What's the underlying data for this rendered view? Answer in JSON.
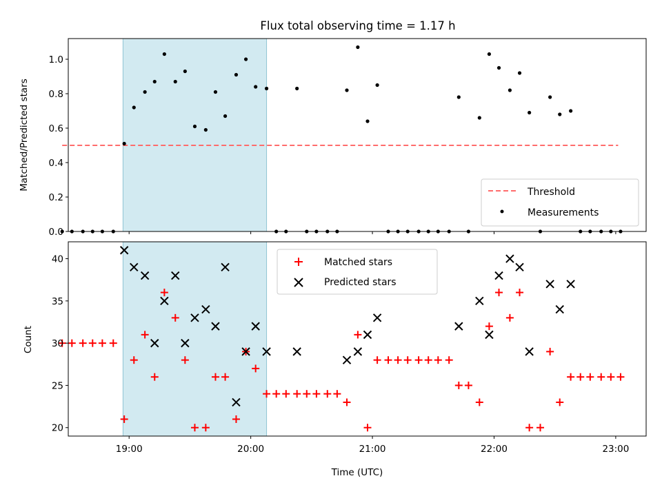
{
  "figure": {
    "title": "Flux total observing time = 1.17 h"
  },
  "chart_data": [
    {
      "type": "scatter",
      "ylabel": "Matched/Predicted stars",
      "xlim": [
        18.5,
        23.25
      ],
      "ylim": [
        0,
        1.12
      ],
      "yticks": [
        0.0,
        0.2,
        0.4,
        0.6,
        0.8,
        1.0
      ],
      "ytick_labels": [
        "0.0",
        "0.2",
        "0.4",
        "0.6",
        "0.8",
        "1.0"
      ],
      "xticks": [
        19,
        20,
        21,
        22,
        23
      ],
      "grid": false,
      "legend_position": "lower-right",
      "shaded_span": {
        "x": [
          18.95,
          20.13
        ],
        "color": "#add8e6"
      },
      "threshold": {
        "name": "Threshold",
        "y": 0.5,
        "x": [
          18.45,
          23.02
        ],
        "color": "#ff6b6b"
      },
      "series": [
        {
          "name": "Measurements",
          "color": "#000000",
          "points": [
            [
              18.45,
              0
            ],
            [
              18.53,
              0
            ],
            [
              18.62,
              0
            ],
            [
              18.7,
              0
            ],
            [
              18.78,
              0
            ],
            [
              18.87,
              0
            ],
            [
              18.96,
              0.51
            ],
            [
              19.04,
              0.72
            ],
            [
              19.13,
              0.81
            ],
            [
              19.21,
              0.87
            ],
            [
              19.29,
              1.03
            ],
            [
              19.38,
              0.87
            ],
            [
              19.46,
              0.93
            ],
            [
              19.54,
              0.61
            ],
            [
              19.63,
              0.59
            ],
            [
              19.71,
              0.81
            ],
            [
              19.79,
              0.67
            ],
            [
              19.88,
              0.91
            ],
            [
              19.96,
              1.0
            ],
            [
              20.04,
              0.84
            ],
            [
              20.13,
              0.83
            ],
            [
              20.21,
              0
            ],
            [
              20.29,
              0
            ],
            [
              20.38,
              0.83
            ],
            [
              20.46,
              0
            ],
            [
              20.54,
              0
            ],
            [
              20.63,
              0
            ],
            [
              20.71,
              0
            ],
            [
              20.79,
              0.82
            ],
            [
              20.88,
              1.07
            ],
            [
              20.96,
              0.64
            ],
            [
              21.04,
              0.85
            ],
            [
              21.13,
              0
            ],
            [
              21.21,
              0
            ],
            [
              21.29,
              0
            ],
            [
              21.38,
              0
            ],
            [
              21.46,
              0
            ],
            [
              21.54,
              0
            ],
            [
              21.63,
              0
            ],
            [
              21.71,
              0.78
            ],
            [
              21.79,
              0
            ],
            [
              21.88,
              0.66
            ],
            [
              21.96,
              1.03
            ],
            [
              22.04,
              0.95
            ],
            [
              22.13,
              0.82
            ],
            [
              22.21,
              0.92
            ],
            [
              22.29,
              0.69
            ],
            [
              22.38,
              0
            ],
            [
              22.46,
              0.78
            ],
            [
              22.54,
              0.68
            ],
            [
              22.63,
              0.7
            ],
            [
              22.71,
              0
            ],
            [
              22.79,
              0
            ],
            [
              22.88,
              0
            ],
            [
              22.96,
              0
            ],
            [
              23.04,
              0
            ]
          ]
        }
      ]
    },
    {
      "type": "scatter",
      "xlabel": "Time (UTC)",
      "ylabel": "Count",
      "xlim": [
        18.5,
        23.25
      ],
      "ylim": [
        19,
        42
      ],
      "yticks": [
        20,
        25,
        30,
        35,
        40
      ],
      "ytick_labels": [
        "20",
        "25",
        "30",
        "35",
        "40"
      ],
      "xticks": [
        19,
        20,
        21,
        22,
        23
      ],
      "xtick_labels": [
        "19:00",
        "20:00",
        "21:00",
        "22:00",
        "23:00"
      ],
      "grid": false,
      "legend_position": "top-center",
      "shaded_span": {
        "x": [
          18.95,
          20.13
        ],
        "color": "#add8e6"
      },
      "series": [
        {
          "name": "Matched stars",
          "marker": "plus",
          "color": "#ff0000",
          "points": [
            [
              18.45,
              30
            ],
            [
              18.53,
              30
            ],
            [
              18.62,
              30
            ],
            [
              18.7,
              30
            ],
            [
              18.78,
              30
            ],
            [
              18.87,
              30
            ],
            [
              18.96,
              21
            ],
            [
              19.04,
              28
            ],
            [
              19.13,
              31
            ],
            [
              19.21,
              26
            ],
            [
              19.29,
              36
            ],
            [
              19.38,
              33
            ],
            [
              19.46,
              28
            ],
            [
              19.54,
              20
            ],
            [
              19.63,
              20
            ],
            [
              19.71,
              26
            ],
            [
              19.79,
              26
            ],
            [
              19.88,
              21
            ],
            [
              19.96,
              29
            ],
            [
              20.04,
              27
            ],
            [
              20.13,
              24
            ],
            [
              20.21,
              24
            ],
            [
              20.29,
              24
            ],
            [
              20.38,
              24
            ],
            [
              20.46,
              24
            ],
            [
              20.54,
              24
            ],
            [
              20.63,
              24
            ],
            [
              20.71,
              24
            ],
            [
              20.79,
              23
            ],
            [
              20.88,
              31
            ],
            [
              20.96,
              20
            ],
            [
              21.04,
              28
            ],
            [
              21.13,
              28
            ],
            [
              21.21,
              28
            ],
            [
              21.29,
              28
            ],
            [
              21.38,
              28
            ],
            [
              21.46,
              28
            ],
            [
              21.54,
              28
            ],
            [
              21.63,
              28
            ],
            [
              21.71,
              25
            ],
            [
              21.79,
              25
            ],
            [
              21.88,
              23
            ],
            [
              21.96,
              32
            ],
            [
              22.04,
              36
            ],
            [
              22.13,
              33
            ],
            [
              22.21,
              36
            ],
            [
              22.29,
              20
            ],
            [
              22.38,
              20
            ],
            [
              22.46,
              29
            ],
            [
              22.54,
              23
            ],
            [
              22.63,
              26
            ],
            [
              22.71,
              26
            ],
            [
              22.79,
              26
            ],
            [
              22.88,
              26
            ],
            [
              22.96,
              26
            ],
            [
              23.04,
              26
            ]
          ]
        },
        {
          "name": "Predicted stars",
          "marker": "x",
          "color": "#000000",
          "points": [
            [
              18.96,
              41
            ],
            [
              19.04,
              39
            ],
            [
              19.13,
              38
            ],
            [
              19.21,
              30
            ],
            [
              19.29,
              35
            ],
            [
              19.38,
              38
            ],
            [
              19.46,
              30
            ],
            [
              19.54,
              33
            ],
            [
              19.63,
              34
            ],
            [
              19.71,
              32
            ],
            [
              19.79,
              39
            ],
            [
              19.88,
              23
            ],
            [
              19.96,
              29
            ],
            [
              20.04,
              32
            ],
            [
              20.13,
              29
            ],
            [
              20.38,
              29
            ],
            [
              20.79,
              28
            ],
            [
              20.88,
              29
            ],
            [
              20.96,
              31
            ],
            [
              21.04,
              33
            ],
            [
              21.71,
              32
            ],
            [
              21.88,
              35
            ],
            [
              21.96,
              31
            ],
            [
              22.04,
              38
            ],
            [
              22.13,
              40
            ],
            [
              22.21,
              39
            ],
            [
              22.29,
              29
            ],
            [
              22.46,
              37
            ],
            [
              22.54,
              34
            ],
            [
              22.63,
              37
            ]
          ]
        }
      ]
    }
  ]
}
